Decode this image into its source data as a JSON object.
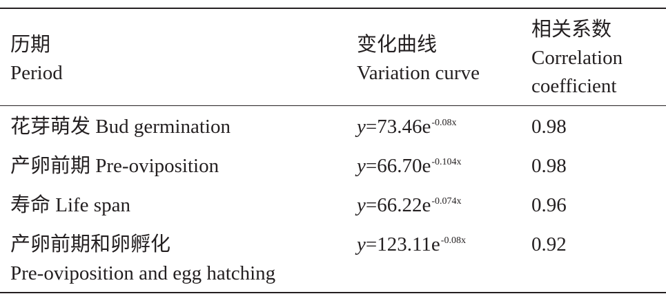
{
  "table": {
    "headers": {
      "period_zh": "历期",
      "period_en": "Period",
      "curve_zh": "变化曲线",
      "curve_en": "Variation curve",
      "coef_zh": "相关系数",
      "coef_en_1": "Correlation",
      "coef_en_2": "coefficient"
    },
    "rows": [
      {
        "period": "花芽萌发 Bud germination",
        "y": "y",
        "eq": "=73.46e",
        "exp": "-0.08x",
        "r": "0.98"
      },
      {
        "period": "产卵前期 Pre-oviposition",
        "y": "y",
        "eq": "=66.70e",
        "exp": "-0.104x",
        "r": "0.98"
      },
      {
        "period": "寿命 Life span",
        "y": "y",
        "eq": "=66.22e",
        "exp": "-0.074x",
        "r": "0.96"
      },
      {
        "period": "产卵前期和卵孵化",
        "period_line2": "Pre-oviposition and egg hatching",
        "y": "y",
        "eq": "=123.11e",
        "exp": "-0.08x",
        "r": "0.92"
      }
    ]
  }
}
